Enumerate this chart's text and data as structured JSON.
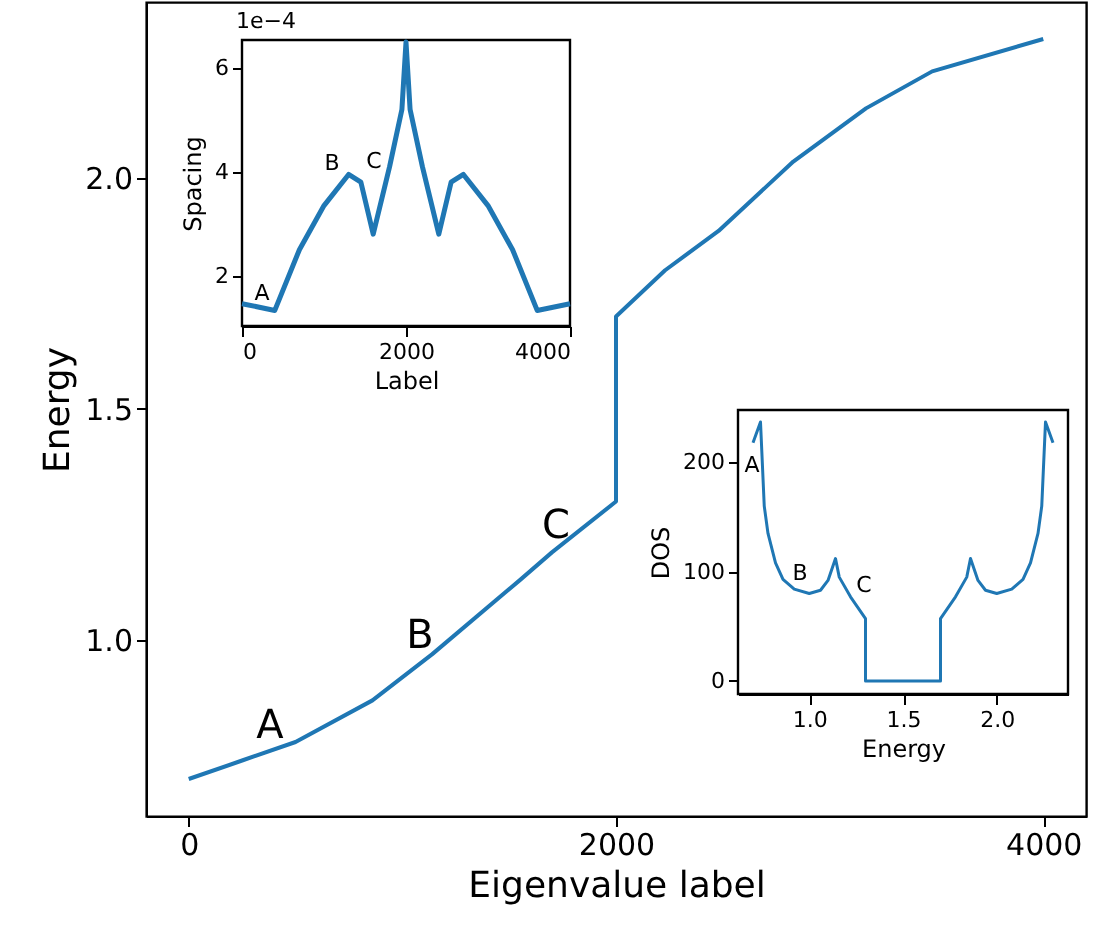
{
  "chart_data": [
    {
      "type": "line",
      "xlabel": "Eigenvalue label",
      "ylabel": "Energy",
      "color": "#1f77b4",
      "x": [
        0,
        250,
        500,
        860,
        1140,
        1550,
        1700,
        2000,
        2000,
        2230,
        2480,
        2830,
        3170,
        3480,
        4000
      ],
      "values": [
        0.7,
        0.74,
        0.78,
        0.87,
        0.97,
        1.13,
        1.19,
        1.3,
        1.7,
        1.8,
        1.885,
        2.035,
        2.15,
        2.23,
        2.3
      ],
      "xlim": [
        -200,
        4200
      ],
      "ylim": [
        0.62,
        2.38
      ],
      "xticks": [
        0,
        2000,
        4000
      ],
      "yticks": [
        {
          "value": 1,
          "label": "1.0"
        },
        {
          "value": 1.5,
          "label": "1.5"
        },
        {
          "value": 2,
          "label": "2.0"
        }
      ],
      "annotations": [
        "A",
        "B",
        "C"
      ]
    },
    {
      "type": "line",
      "xlabel": "Label",
      "ylabel": "Spacing",
      "color": "#1f77b4",
      "x": [
        0,
        400,
        700,
        1000,
        1300,
        1450,
        1600,
        1800,
        1950,
        2000,
        2050,
        2200,
        2400,
        2550,
        2700,
        3000,
        3300,
        3600,
        4000
      ],
      "values": [
        1.46,
        1.33,
        2.5,
        3.35,
        3.95,
        3.8,
        2.8,
        4.1,
        5.2,
        6.5,
        5.2,
        4.1,
        2.8,
        3.8,
        3.95,
        3.35,
        2.5,
        1.33,
        1.46
      ],
      "xlim": [
        0,
        4000
      ],
      "ylim": [
        1.03,
        6.54
      ],
      "xticks": [
        0,
        2000,
        4000
      ],
      "yticks": [
        2,
        4,
        6
      ],
      "annotations": [
        "1e−4",
        "A",
        "B",
        "C"
      ]
    },
    {
      "type": "line",
      "xlabel": "Energy",
      "ylabel": "DOS",
      "color": "#1f77b4",
      "x": [
        0.7,
        0.74,
        0.76,
        0.78,
        0.82,
        0.86,
        0.92,
        1.0,
        1.06,
        1.1,
        1.14,
        1.16,
        1.22,
        1.3,
        1.3,
        1.7,
        1.7,
        1.78,
        1.84,
        1.86,
        1.9,
        1.94,
        2.0,
        2.08,
        2.14,
        2.18,
        2.22,
        2.24,
        2.26,
        2.3
      ],
      "values": [
        218,
        237,
        160,
        135,
        108,
        93,
        84,
        80,
        83,
        92,
        112,
        95,
        77,
        57,
        0,
        0,
        57,
        77,
        95,
        112,
        92,
        83,
        80,
        84,
        93,
        108,
        135,
        160,
        237,
        218
      ],
      "xlim": [
        0.62,
        2.38
      ],
      "ylim": [
        -12,
        248
      ],
      "xticks": [
        {
          "value": 1,
          "label": "1.0"
        },
        {
          "value": 1.5,
          "label": "1.5"
        },
        {
          "value": 2,
          "label": "2.0"
        }
      ],
      "yticks": [
        0,
        100,
        200
      ],
      "annotations": [
        "A",
        "B",
        "C"
      ]
    }
  ]
}
